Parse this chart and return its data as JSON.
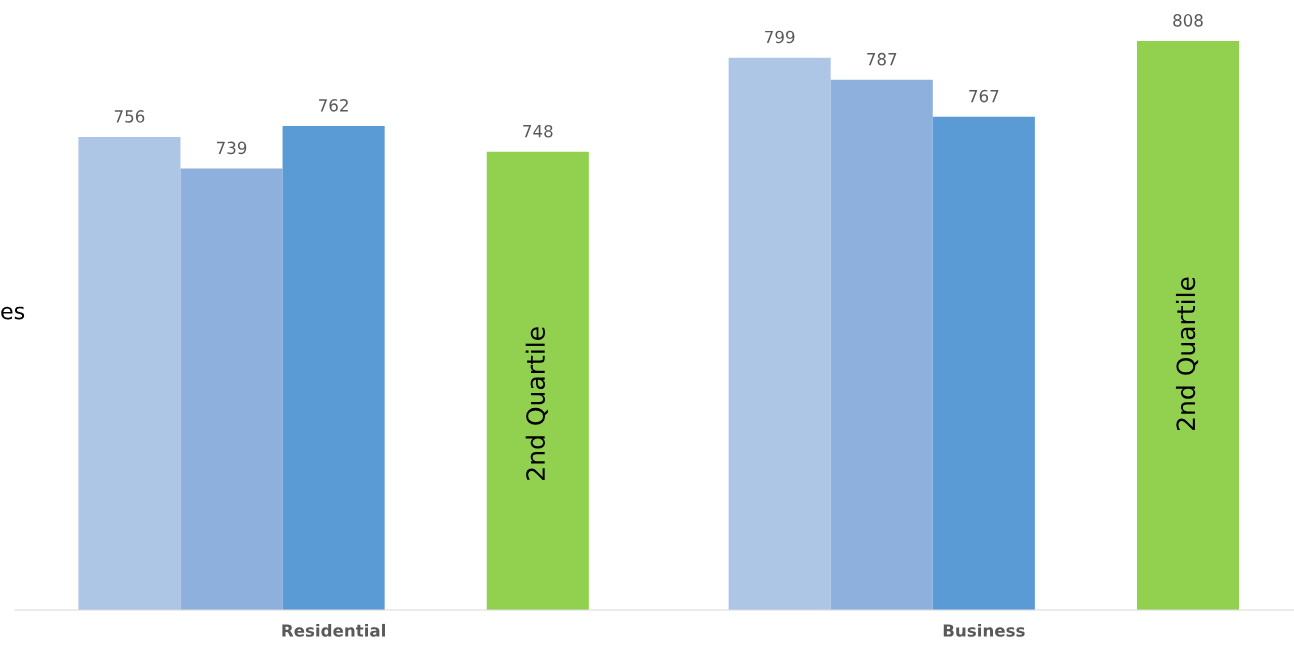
{
  "chart_data": {
    "type": "bar",
    "categories": [
      "Residential",
      "Business"
    ],
    "series": [
      {
        "color": "#aec6e6",
        "values": [
          756,
          799
        ]
      },
      {
        "color": "#8eb0dc",
        "values": [
          739,
          787
        ]
      },
      {
        "color": "#5b9bd5",
        "values": [
          762,
          767
        ]
      },
      {
        "values": [
          null,
          null
        ]
      },
      {
        "color": "#92d050",
        "values": [
          748,
          808
        ]
      }
    ],
    "ylim": [
      500,
      808
    ],
    "data_labels": true,
    "tick_labels": "x",
    "grid": false,
    "legend": false,
    "annotations": [
      "es",
      "2nd Quartile",
      "2nd Quartile"
    ]
  }
}
